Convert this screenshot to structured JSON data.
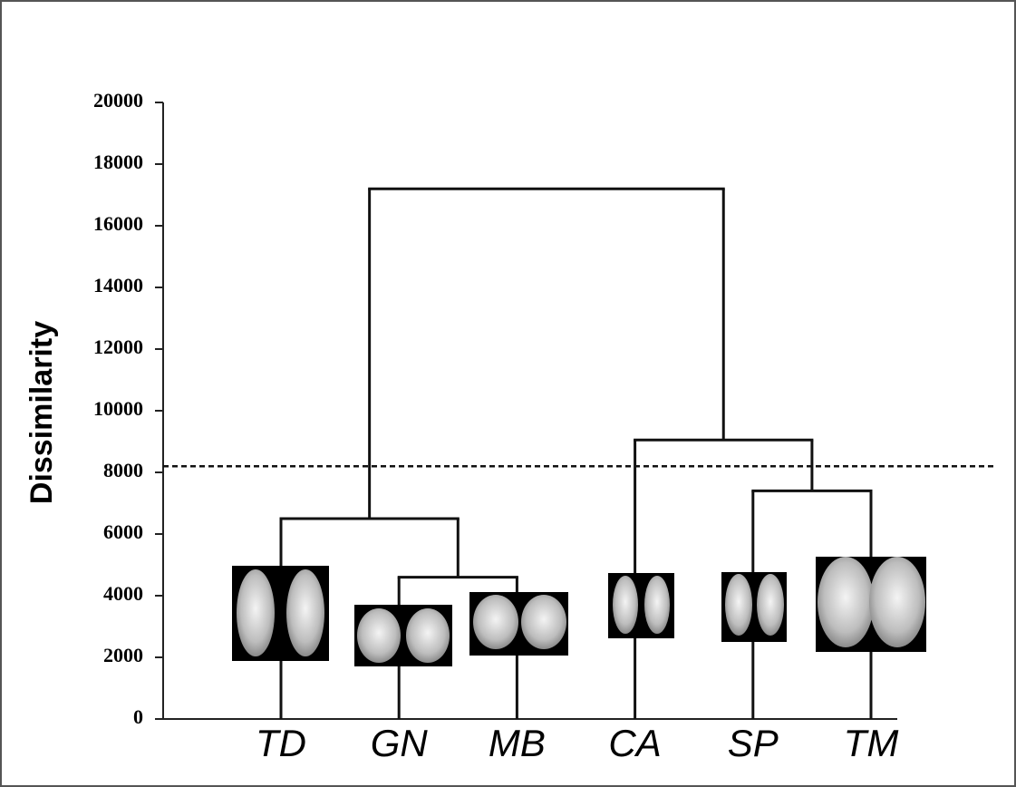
{
  "chart_data": {
    "type": "dendrogram",
    "y_label": "Dissimilarity",
    "ylim": [
      0,
      20000
    ],
    "yticks": [
      0,
      2000,
      4000,
      6000,
      8000,
      10000,
      12000,
      14000,
      16000,
      18000,
      20000
    ],
    "threshold": 8200,
    "tree": {
      "height": 17200,
      "children": [
        {
          "height": 6500,
          "children": [
            {
              "label": "TD"
            },
            {
              "height": 4600,
              "children": [
                {
                  "label": "GN"
                },
                {
                  "label": "MB"
                }
              ]
            }
          ]
        },
        {
          "height": 9050,
          "children": [
            {
              "label": "CA"
            },
            {
              "height": 7400,
              "children": [
                {
                  "label": "SP"
                },
                {
                  "label": "TM"
                }
              ]
            }
          ]
        }
      ]
    }
  }
}
